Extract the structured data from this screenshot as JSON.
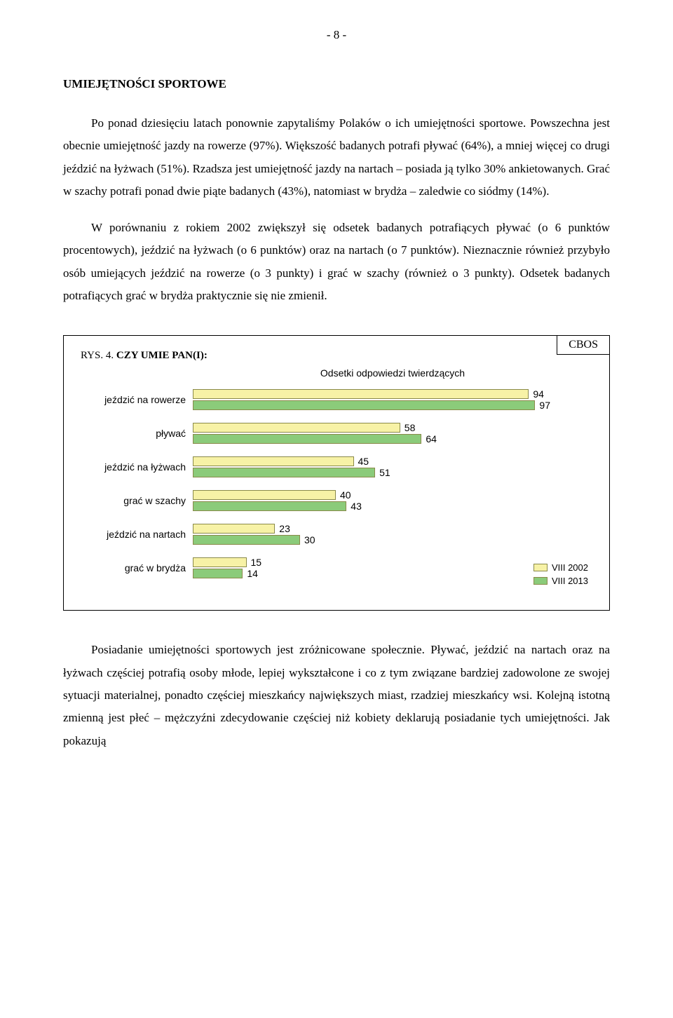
{
  "page_number": "- 8 -",
  "section_title": "UMIEJĘTNOŚCI SPORTOWE",
  "paragraphs": {
    "p1": "Po ponad dziesięciu latach ponownie zapytaliśmy Polaków o ich umiejętności sportowe. Powszechna jest obecnie umiejętność jazdy na rowerze (97%). Większość badanych potrafi pływać (64%), a mniej więcej co drugi jeździć na łyżwach (51%). Rzadsza jest umiejętność jazdy na nartach – posiada ją tylko 30% ankietowanych. Grać w szachy potrafi ponad dwie piąte badanych (43%), natomiast w brydża – zaledwie co siódmy (14%).",
    "p2": "W porównaniu z rokiem 2002 zwiększył się odsetek badanych potrafiących pływać (o 6 punktów procentowych), jeździć na łyżwach (o 6 punktów) oraz na nartach (o 7 punktów). Nieznacznie również przybyło osób umiejących jeździć na rowerze (o 3 punkty) i grać w szachy (również o 3 punkty). Odsetek badanych potrafiących grać w brydża praktycznie się nie zmienił.",
    "p3": "Posiadanie umiejętności sportowych jest zróżnicowane społecznie. Pływać, jeździć na nartach oraz na łyżwach częściej potrafią osoby młode, lepiej wykształcone i co z tym związane bardziej zadowolone ze swojej sytuacji materialnej, ponadto częściej mieszkańcy największych miast, rzadziej mieszkańcy wsi. Kolejną istotną zmienną jest płeć – mężczyźni zdecydowanie częściej niż kobiety deklarują posiadanie tych umiejętności. Jak pokazują"
  },
  "chart": {
    "badge": "CBOS",
    "caption_prefix": "RYS. 4. ",
    "caption_bold": "CZY UMIE PAN(I):",
    "subtitle": "Odsetki odpowiedzi twierdzących",
    "xmax": 100,
    "bar_fill_a": "#f7f2a6",
    "bar_fill_b": "#8bcb7a",
    "bar_border": "#8a8a4a",
    "categories": [
      {
        "label": "jeździć na rowerze",
        "a": 94,
        "b": 97
      },
      {
        "label": "pływać",
        "a": 58,
        "b": 64
      },
      {
        "label": "jeździć na łyżwach",
        "a": 45,
        "b": 51
      },
      {
        "label": "grać w szachy",
        "a": 40,
        "b": 43
      },
      {
        "label": "jeździć na nartach",
        "a": 23,
        "b": 30
      },
      {
        "label": "grać w brydża",
        "a": 15,
        "b": 14
      }
    ],
    "legend": {
      "a": "VIII 2002",
      "b": "VIII 2013"
    }
  }
}
